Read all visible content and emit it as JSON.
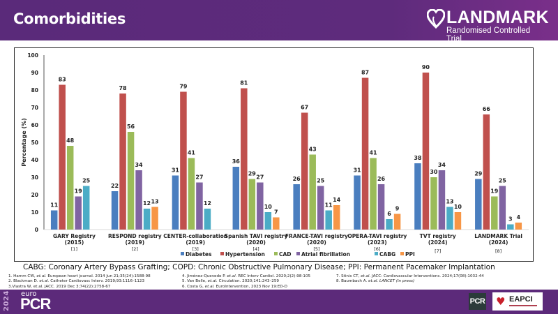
{
  "header": {
    "title": "Comorbidities",
    "logo": {
      "name": "LANDMARK",
      "subtitle": "Randomised Controlled Trial",
      "icon": "heart-icon"
    }
  },
  "chart_data": {
    "type": "bar",
    "title": "",
    "xlabel": "",
    "ylabel": "Percentage (%)",
    "ylim": [
      0,
      100
    ],
    "yticks": [
      0,
      10,
      20,
      30,
      40,
      50,
      60,
      70,
      80,
      90,
      100
    ],
    "grid": false,
    "legend_position": "bottom",
    "categories": [
      {
        "name": "GARY Registry",
        "year": "(2015)",
        "ref": "[1]"
      },
      {
        "name": "RESPOND registry",
        "year": "(2019)",
        "ref": "[2]"
      },
      {
        "name": "CENTER-collaboration",
        "year": "(2019)",
        "ref": "[3]"
      },
      {
        "name": "Spanish TAVI registry",
        "year": "(2020)",
        "ref": "[4]"
      },
      {
        "name": "FRANCE-TAVI registry",
        "year": "(2020)",
        "ref": "[5]"
      },
      {
        "name": "OPERA-TAVI registry",
        "year": "(2023)",
        "ref": "[6]"
      },
      {
        "name": "TVT registry",
        "year": "(2024)",
        "ref": "[7]"
      },
      {
        "name": "LANDMARK Trial",
        "year": "(2024)",
        "ref": "[8]"
      }
    ],
    "series": [
      {
        "name": "Diabetes",
        "color": "#4a7ebf",
        "values": [
          11,
          22,
          31,
          36,
          26,
          31,
          38,
          29
        ]
      },
      {
        "name": "Hypertension",
        "color": "#c0504d",
        "values": [
          83,
          78,
          79,
          81,
          67,
          87,
          90,
          66
        ]
      },
      {
        "name": "CAD",
        "color": "#9bbb59",
        "values": [
          48,
          56,
          41,
          29,
          43,
          41,
          30,
          19
        ]
      },
      {
        "name": "Atrial fibrillation",
        "color": "#8064a2",
        "values": [
          19,
          34,
          27,
          27,
          25,
          26,
          34,
          25
        ]
      },
      {
        "name": "CABG",
        "color": "#4bacc6",
        "values": [
          25,
          12,
          12,
          10,
          11,
          6,
          13,
          3
        ]
      },
      {
        "name": "PPI",
        "color": "#f79646",
        "values": [
          null,
          13,
          null,
          7,
          14,
          9,
          10,
          4
        ]
      }
    ]
  },
  "abbreviations": "CABG: Coronary Artery Bypass Grafting; COPD: Chronic Obstructive Pulmonary Disease; PPI: Permanent Pacemaker Implantation",
  "references": {
    "col1": [
      {
        "pre": "1. Hamm CW, ",
        "em": "et.al.",
        "post": " European heart journal. 2014 Jun 21;35(24):1588-98"
      },
      {
        "pre": "2. Blackman D. ",
        "em": "et.al.",
        "post": " Catheter Cardiovasc Interv. 2019;93:1116–1123"
      },
      {
        "pre": "3.Vlastra W, et.al. JACC. 2019 Dec 3;74(22):2758-67",
        "em": "",
        "post": ""
      }
    ],
    "col2": [
      {
        "pre": "4. Jiménez-Quevedo P. ",
        "em": "et.al.",
        "post": " REC Interv Cardiol. 2020;2(2):98-105"
      },
      {
        "pre": "5. Van Belle, ",
        "em": "et.al.",
        "post": " Circulation. 2020;141:243–259"
      },
      {
        "pre": "6. Costa G, ",
        "em": "et.al.",
        "post": " EuroIntervention, 2023 Nov 19:ED-D"
      }
    ],
    "col3": [
      {
        "pre": "7. Stinis CT, ",
        "em": "et.al.",
        "post": " JACC: Cardiovascular Interventions. 2024;17(08):1032-44"
      },
      {
        "pre": "8. Baumbach A. ",
        "em": "et.al. LANCET (in press)",
        "post": ""
      }
    ]
  },
  "footer": {
    "year": "2024",
    "brand_top": "euro",
    "brand_main": "PCR",
    "badge_pcr": "PCR",
    "badge_eapci": "EAPCI"
  }
}
